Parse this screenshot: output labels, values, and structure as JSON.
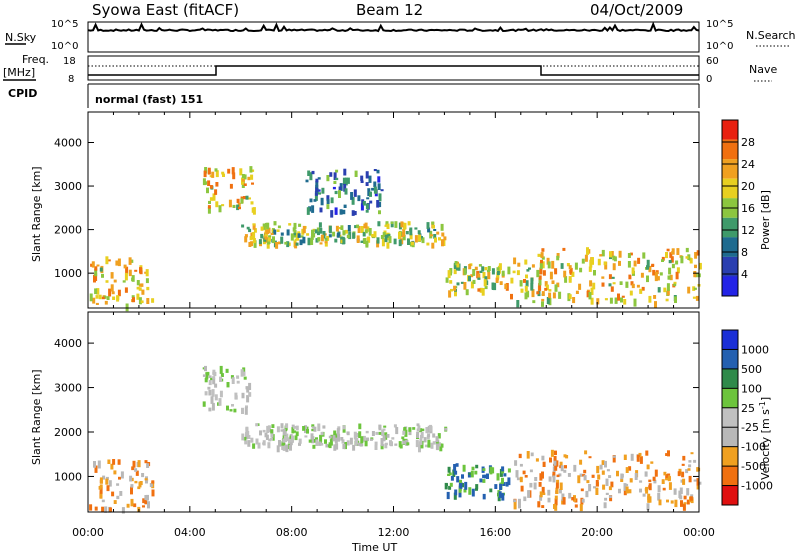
{
  "header": {
    "station": "Syowa East (fitACF)",
    "beam": "Beam 12",
    "date": "04/Oct/2009"
  },
  "noise_panel": {
    "left_label": "N.Sky",
    "right_label": "N.Search",
    "ytick_top": "10^5",
    "ytick_bottom": "10^0",
    "rtick_top": "10^5",
    "rtick_bottom": "10^0"
  },
  "freq_panel": {
    "left_label_line1": "Freq.",
    "left_label_line2": "[MHz]",
    "right_label": "Nave",
    "ytick_top": "18",
    "ytick_bottom": "8",
    "rtick_top": "60",
    "rtick_bottom": "0"
  },
  "cpid": {
    "label": "CPID",
    "mode": "normal (fast) 151"
  },
  "colors": {
    "power_scale": [
      "#2424e6",
      "#2a3fb0",
      "#1f6b8f",
      "#3f9a6a",
      "#8cc63f",
      "#e8d020",
      "#f0a020",
      "#f07010",
      "#e82010"
    ],
    "velocity_scale": [
      "#1a2fd6",
      "#2460b0",
      "#2f8a4a",
      "#6cc43c",
      "#c0c0c0",
      "#b8b8b8",
      "#f0a020",
      "#f07010",
      "#e01010"
    ]
  },
  "chart_data": [
    {
      "type": "heatmap",
      "name": "power",
      "xlabel": "",
      "ylabel": "Slant Range [km]",
      "x_range_hours": [
        0,
        24
      ],
      "ylim": [
        200,
        4700
      ],
      "yticks": [
        "1000",
        "2000",
        "3000",
        "4000"
      ],
      "colorbar_label": "Power [dB]",
      "colorbar_ticks": [
        "4",
        "8",
        "12",
        "16",
        "20",
        "24",
        "28"
      ],
      "colorbar_range": [
        0,
        30
      ],
      "echo_regions": [
        {
          "t": [
            0.0,
            2.5
          ],
          "r": [
            300,
            1400
          ],
          "value": 20
        },
        {
          "t": [
            4.5,
            6.5
          ],
          "r": [
            2500,
            3500
          ],
          "value": 20
        },
        {
          "t": [
            6.0,
            14.0
          ],
          "r": [
            1700,
            2200
          ],
          "value": 16
        },
        {
          "t": [
            8.5,
            11.5
          ],
          "r": [
            2400,
            3400
          ],
          "value": 8
        },
        {
          "t": [
            14.0,
            16.5
          ],
          "r": [
            600,
            1300
          ],
          "value": 18
        },
        {
          "t": [
            16.5,
            24.0
          ],
          "r": [
            350,
            1600
          ],
          "value": 20
        }
      ]
    },
    {
      "type": "heatmap",
      "name": "velocity",
      "xlabel": "Time UT",
      "ylabel": "Slant Range [km]",
      "x_range_hours": [
        0,
        24
      ],
      "ylim": [
        200,
        4700
      ],
      "yticks": [
        "1000",
        "2000",
        "3000",
        "4000"
      ],
      "xticks": [
        "00:00",
        "04:00",
        "08:00",
        "12:00",
        "16:00",
        "20:00",
        "00:00"
      ],
      "colorbar_label": "Velocity [m s",
      "colorbar_label_sup": "-1",
      "colorbar_label_end": "]",
      "colorbar_ticks": [
        "1000",
        "500",
        "100",
        "25",
        "-25",
        "-100",
        "-500",
        "-1000"
      ],
      "echo_regions": [
        {
          "t": [
            0.0,
            2.5
          ],
          "r": [
            300,
            1400
          ],
          "value": -200
        },
        {
          "t": [
            4.5,
            6.5
          ],
          "r": [
            2500,
            3500
          ],
          "value": 0
        },
        {
          "t": [
            6.0,
            14.0
          ],
          "r": [
            1700,
            2200
          ],
          "value": 0
        },
        {
          "t": [
            14.0,
            16.5
          ],
          "r": [
            600,
            1300
          ],
          "value": 100
        },
        {
          "t": [
            16.5,
            24.0
          ],
          "r": [
            350,
            1600
          ],
          "value": -150
        }
      ]
    }
  ]
}
